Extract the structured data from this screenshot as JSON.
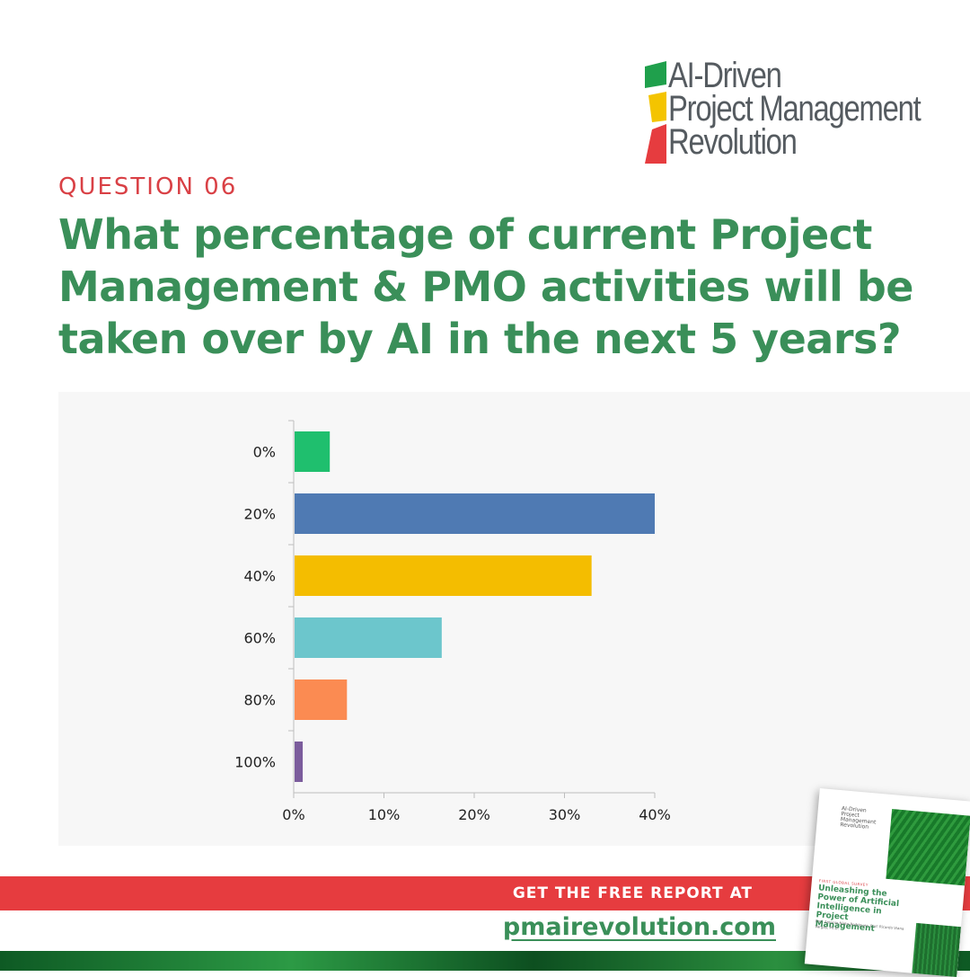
{
  "logo": {
    "lines": [
      "AI-Driven",
      "Project Management",
      "Revolution"
    ]
  },
  "question": {
    "label": "QUESTION 06",
    "title": "What percentage of current Project Management & PMO activities will be taken over by AI in the next 5 years?"
  },
  "chart_data": {
    "type": "bar",
    "orientation": "horizontal",
    "categories": [
      "0%",
      "20%",
      "40%",
      "60%",
      "80%",
      "100%"
    ],
    "values": [
      4,
      40,
      33,
      16.4,
      5.9,
      1
    ],
    "colors": [
      "#1fbf6e",
      "#4f7ab3",
      "#f4bd00",
      "#6cc6cc",
      "#fb8b52",
      "#7b5c9c"
    ],
    "xlim": [
      0,
      40
    ],
    "xticks": [
      "0%",
      "10%",
      "20%",
      "30%",
      "40%"
    ],
    "grid": false,
    "title": "",
    "xlabel": "",
    "ylabel": ""
  },
  "footer": {
    "cta": "GET THE FREE REPORT AT",
    "site": "pmairevolution.com"
  },
  "report_cover": {
    "logo_lines": [
      "AI-Driven",
      "Project Management",
      "Revolution"
    ],
    "kicker": "FIRST GLOBAL SURVEY",
    "title": "Unleashing the Power of Artificial Intelligence in Project Management",
    "authors": "Prof. Antonio Nieto-Rodriguez, Prof. Ricardo Viana Vargas, Ph.D."
  }
}
